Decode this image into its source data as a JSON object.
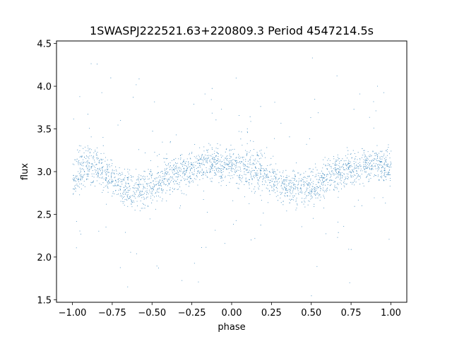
{
  "chart_data": {
    "type": "scatter",
    "title": "1SWASPJ222521.63+220809.3 Period 4547214.5s",
    "xlabel": "phase",
    "ylabel": "flux",
    "xlim": [
      -1.1,
      1.1
    ],
    "ylim": [
      1.47,
      4.53
    ],
    "x_ticks": [
      -1.0,
      -0.75,
      -0.5,
      -0.25,
      0.0,
      0.25,
      0.5,
      0.75,
      1.0
    ],
    "x_tick_labels": [
      "−1.00",
      "−0.75",
      "−0.50",
      "−0.25",
      "0.00",
      "0.25",
      "0.50",
      "0.75",
      "1.00"
    ],
    "y_ticks": [
      1.5,
      2.0,
      2.5,
      3.0,
      3.5,
      4.0,
      4.5
    ],
    "y_tick_labels": [
      "1.5",
      "2.0",
      "2.5",
      "3.0",
      "3.5",
      "4.0",
      "4.5"
    ],
    "grid": false,
    "marker_color": "#1f77b4",
    "series": [
      {
        "x": [
          -1.0,
          -0.9,
          -0.8,
          -0.7,
          -0.6,
          -0.5,
          -0.4,
          -0.3,
          -0.2,
          -0.1,
          0.0,
          0.1,
          0.2,
          0.3,
          0.4,
          0.5,
          0.6,
          0.7,
          0.8,
          0.9,
          1.0
        ],
        "y": [
          2.98,
          3.08,
          3.0,
          2.85,
          2.8,
          2.82,
          2.95,
          3.0,
          3.08,
          3.1,
          3.07,
          3.05,
          3.0,
          2.85,
          2.8,
          2.82,
          2.95,
          3.0,
          3.08,
          3.1,
          3.07
        ],
        "spread": [
          0.22,
          0.22,
          0.2,
          0.18,
          0.2,
          0.22,
          0.2,
          0.18,
          0.18,
          0.18,
          0.2,
          0.22,
          0.2,
          0.18,
          0.2,
          0.22,
          0.2,
          0.18,
          0.18,
          0.18,
          0.2
        ]
      }
    ]
  }
}
